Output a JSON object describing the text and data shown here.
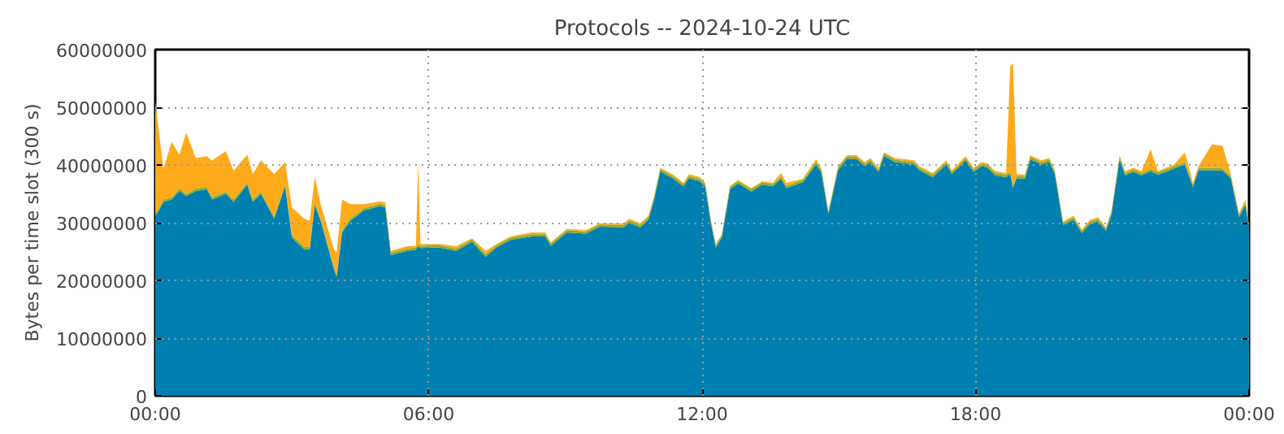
{
  "chart_data": {
    "type": "area",
    "stacked": true,
    "title": "Protocols -- 2024-10-24 UTC",
    "ylabel": "Bytes per time slot (300 s)",
    "x": [
      0.0,
      0.18,
      0.36,
      0.53,
      0.68,
      0.89,
      1.13,
      1.25,
      1.55,
      1.72,
      2.02,
      2.14,
      2.32,
      2.61,
      2.85,
      3.0,
      3.27,
      3.39,
      3.5,
      3.63,
      3.92,
      3.98,
      4.1,
      4.28,
      4.58,
      4.93,
      5.05,
      5.17,
      5.53,
      5.72,
      5.77,
      5.82,
      6.24,
      6.6,
      6.95,
      7.25,
      7.49,
      7.79,
      8.26,
      8.56,
      8.68,
      9.03,
      9.45,
      9.75,
      10.28,
      10.4,
      10.64,
      10.82,
      10.94,
      11.08,
      11.35,
      11.59,
      11.71,
      11.95,
      12.07,
      12.19,
      12.3,
      12.43,
      12.61,
      12.79,
      13.08,
      13.32,
      13.55,
      13.73,
      13.85,
      14.21,
      14.5,
      14.62,
      14.77,
      14.98,
      15.18,
      15.39,
      15.57,
      15.69,
      15.87,
      15.99,
      16.23,
      16.65,
      16.77,
      17.06,
      17.36,
      17.48,
      17.78,
      17.96,
      18.13,
      18.25,
      18.43,
      18.67,
      18.76,
      18.82,
      18.9,
      19.08,
      19.2,
      19.44,
      19.62,
      19.74,
      19.92,
      20.15,
      20.33,
      20.51,
      20.69,
      20.86,
      20.98,
      21.16,
      21.28,
      21.46,
      21.64,
      21.84,
      22.0,
      22.18,
      22.36,
      22.59,
      22.77,
      22.89,
      23.19,
      23.42,
      23.6,
      23.78,
      23.92,
      24.0
    ],
    "series": [
      {
        "color": "#0080b0",
        "values": [
          31000000,
          33600000,
          34000000,
          35500000,
          34600000,
          35500000,
          35800000,
          34000000,
          35000000,
          33600000,
          36600000,
          33600000,
          35000000,
          30700000,
          36300000,
          27400000,
          25400000,
          25400000,
          33100000,
          30300000,
          22000000,
          20600000,
          28300000,
          30300000,
          32100000,
          32900000,
          32600000,
          24400000,
          25100000,
          25300000,
          25900000,
          25600000,
          25700000,
          25100000,
          26700000,
          24100000,
          25700000,
          27000000,
          27600000,
          27600000,
          26000000,
          28300000,
          28100000,
          29300000,
          29200000,
          30000000,
          29200000,
          30500000,
          33800000,
          38900000,
          37700000,
          36300000,
          37700000,
          37200000,
          36200000,
          30000000,
          25700000,
          27400000,
          35800000,
          36800000,
          35400000,
          36600000,
          36300000,
          37600000,
          36000000,
          37000000,
          40100000,
          38600000,
          31500000,
          39100000,
          41100000,
          41000000,
          39800000,
          40500000,
          38800000,
          41600000,
          40500000,
          40100000,
          39100000,
          37900000,
          40100000,
          38400000,
          40800000,
          38800000,
          39800000,
          39600000,
          38200000,
          37900000,
          38400000,
          36000000,
          37700000,
          37600000,
          41000000,
          40100000,
          40500000,
          38400000,
          29600000,
          30500000,
          28200000,
          29800000,
          30200000,
          28600000,
          31400000,
          41000000,
          38200000,
          38800000,
          38200000,
          38900000,
          38300000,
          38800000,
          39400000,
          40100000,
          36200000,
          39100000,
          39100000,
          39000000,
          37700000,
          31000000,
          33100000,
          29100000
        ]
      },
      {
        "color": "#8aac2c",
        "values": [
          400000,
          400000,
          400000,
          400000,
          400000,
          400000,
          400000,
          400000,
          400000,
          400000,
          400000,
          400000,
          400000,
          400000,
          400000,
          400000,
          400000,
          400000,
          400000,
          400000,
          400000,
          400000,
          400000,
          400000,
          400000,
          400000,
          400000,
          400000,
          400000,
          400000,
          400000,
          400000,
          400000,
          400000,
          400000,
          400000,
          400000,
          400000,
          400000,
          400000,
          400000,
          400000,
          400000,
          400000,
          400000,
          400000,
          400000,
          400000,
          400000,
          400000,
          400000,
          400000,
          400000,
          400000,
          400000,
          400000,
          400000,
          400000,
          400000,
          400000,
          400000,
          400000,
          400000,
          400000,
          400000,
          400000,
          400000,
          400000,
          400000,
          400000,
          400000,
          400000,
          400000,
          400000,
          400000,
          400000,
          400000,
          400000,
          400000,
          400000,
          400000,
          400000,
          400000,
          400000,
          400000,
          400000,
          400000,
          400000,
          400000,
          400000,
          400000,
          400000,
          400000,
          400000,
          400000,
          400000,
          400000,
          400000,
          400000,
          400000,
          400000,
          400000,
          400000,
          400000,
          400000,
          400000,
          400000,
          400000,
          400000,
          400000,
          400000,
          400000,
          400000,
          400000,
          400000,
          400000,
          400000,
          400000,
          400000,
          400000
        ]
      },
      {
        "color": "#ffaa1a",
        "values": [
          19600000,
          5300000,
          9600000,
          5900000,
          10600000,
          5300000,
          5300000,
          6400000,
          7000000,
          5000000,
          4800000,
          4400000,
          5400000,
          7300000,
          3800000,
          4800000,
          4900000,
          4500000,
          4400000,
          2500000,
          3000000,
          3900000,
          5300000,
          2500000,
          700000,
          400000,
          500000,
          300000,
          400000,
          300000,
          14500000,
          300000,
          200000,
          400000,
          200000,
          600000,
          200000,
          200000,
          300000,
          300000,
          200000,
          200000,
          200000,
          200000,
          300000,
          300000,
          300000,
          300000,
          300000,
          200000,
          300000,
          200000,
          300000,
          300000,
          300000,
          300000,
          200000,
          200000,
          200000,
          200000,
          200000,
          200000,
          200000,
          600000,
          500000,
          200000,
          500000,
          300000,
          200000,
          300000,
          200000,
          300000,
          300000,
          300000,
          300000,
          200000,
          300000,
          300000,
          300000,
          300000,
          300000,
          300000,
          300000,
          300000,
          300000,
          300000,
          300000,
          300000,
          18300000,
          21200000,
          300000,
          300000,
          300000,
          300000,
          300000,
          300000,
          200000,
          300000,
          200000,
          300000,
          300000,
          200000,
          300000,
          300000,
          300000,
          300000,
          300000,
          3400000,
          200000,
          300000,
          300000,
          1700000,
          300000,
          300000,
          4100000,
          3900000,
          300000,
          200000,
          500000,
          200000
        ]
      }
    ],
    "xlim": [
      0,
      24
    ],
    "xticks": [
      {
        "value": 0,
        "label": "00:00"
      },
      {
        "value": 6,
        "label": "06:00"
      },
      {
        "value": 12,
        "label": "12:00"
      },
      {
        "value": 18,
        "label": "18:00"
      },
      {
        "value": 24,
        "label": "00:00"
      }
    ],
    "ylim": [
      0,
      60000000
    ],
    "yticks": [
      0,
      10000000,
      20000000,
      30000000,
      40000000,
      50000000,
      60000000
    ],
    "grid": true
  }
}
